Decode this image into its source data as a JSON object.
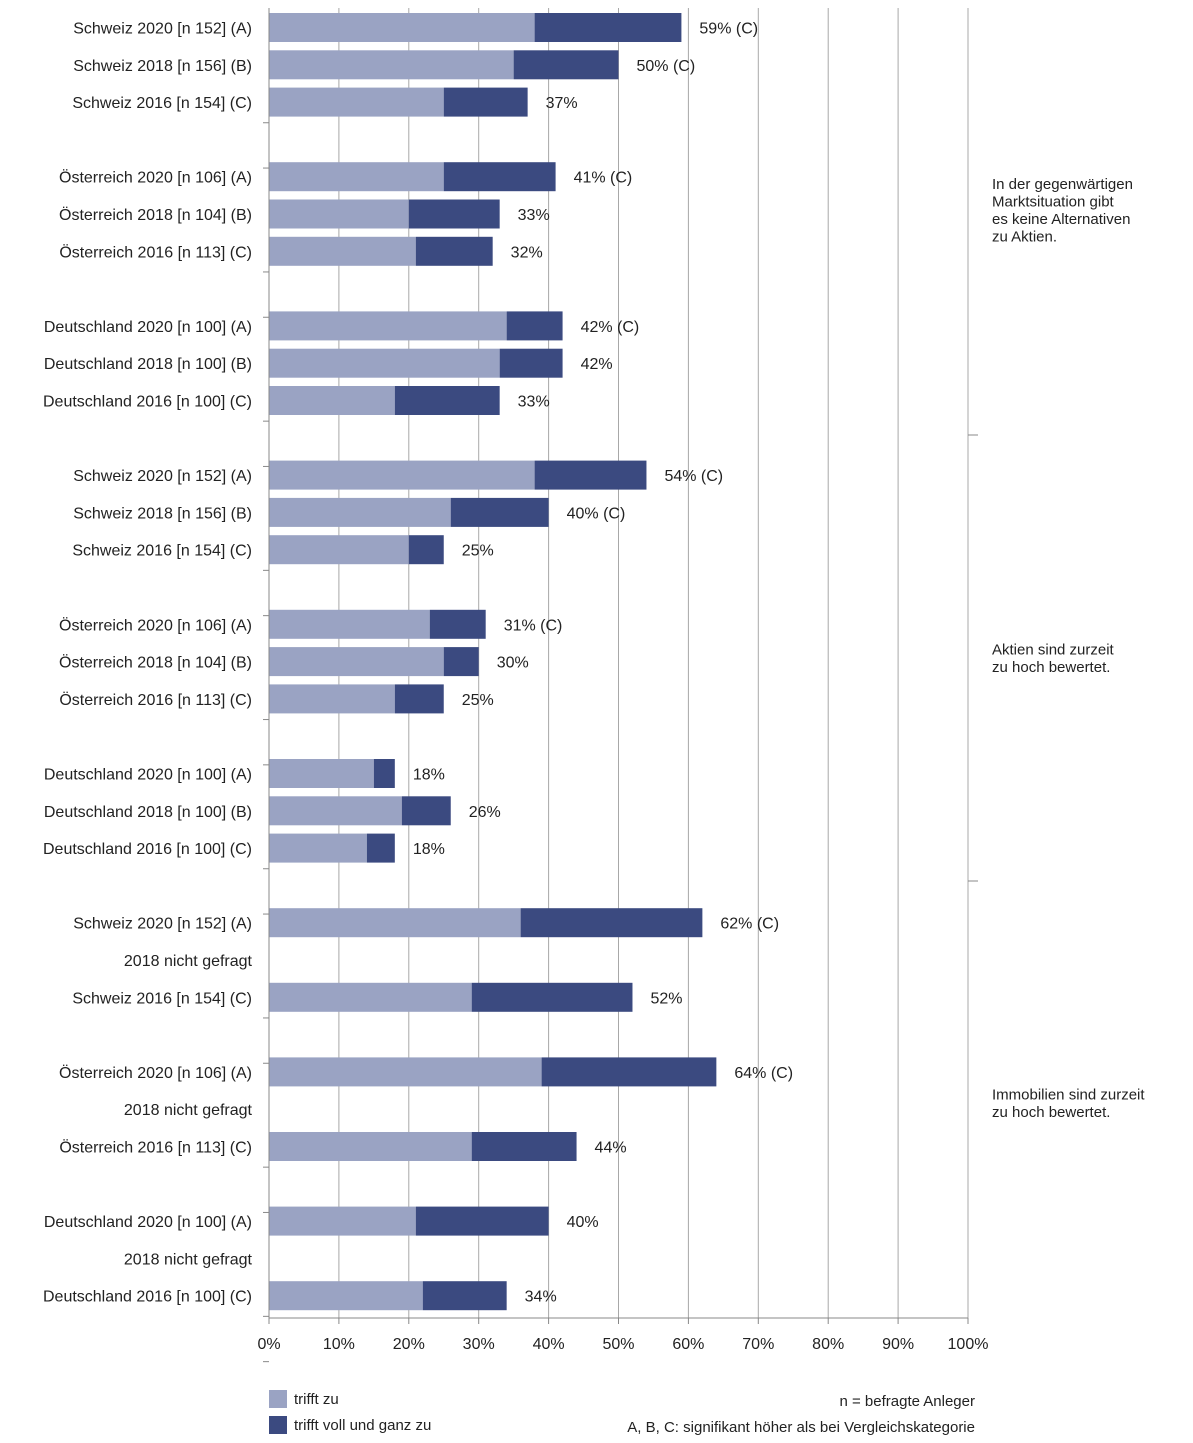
{
  "chart_data": {
    "type": "bar",
    "orientation": "horizontal",
    "stacked": true,
    "xlim": [
      0,
      100
    ],
    "x_ticks": [
      "0%",
      "10%",
      "20%",
      "30%",
      "40%",
      "50%",
      "60%",
      "70%",
      "80%",
      "90%",
      "100%"
    ],
    "grid": true,
    "legend_position": "bottom-left",
    "colors": {
      "trifft_zu": "#9aa3c3",
      "trifft_voll": "#3b4a80",
      "grid": "#a8a8a8",
      "axis": "#888888"
    },
    "series": [
      {
        "name": "trifft zu",
        "color": "#9aa3c3"
      },
      {
        "name": "trifft voll und ganz zu",
        "color": "#3b4a80"
      }
    ],
    "groups": [
      {
        "statement": [
          "In der gegenwärtigen",
          "Marktsituation gibt",
          "es keine Alternativen",
          "zu Aktien."
        ],
        "countries": [
          {
            "rows": [
              {
                "label": "Schweiz 2020 [n 152] (A)",
                "trifft_zu": 38,
                "trifft_voll": 21,
                "total_label": "59% (C)"
              },
              {
                "label": "Schweiz 2018 [n 156] (B)",
                "trifft_zu": 35,
                "trifft_voll": 15,
                "total_label": "50% (C)"
              },
              {
                "label": "Schweiz 2016 [n 154] (C)",
                "trifft_zu": 25,
                "trifft_voll": 12,
                "total_label": "37%"
              }
            ]
          },
          {
            "rows": [
              {
                "label": "Österreich 2020 [n 106] (A)",
                "trifft_zu": 25,
                "trifft_voll": 16,
                "total_label": "41% (C)"
              },
              {
                "label": "Österreich 2018 [n 104] (B)",
                "trifft_zu": 20,
                "trifft_voll": 13,
                "total_label": "33%"
              },
              {
                "label": "Österreich 2016 [n 113] (C)",
                "trifft_zu": 21,
                "trifft_voll": 11,
                "total_label": "32%"
              }
            ]
          },
          {
            "rows": [
              {
                "label": "Deutschland 2020 [n 100] (A)",
                "trifft_zu": 34,
                "trifft_voll": 8,
                "total_label": "42% (C)"
              },
              {
                "label": "Deutschland 2018 [n 100] (B)",
                "trifft_zu": 33,
                "trifft_voll": 9,
                "total_label": "42%"
              },
              {
                "label": "Deutschland 2016 [n 100] (C)",
                "trifft_zu": 18,
                "trifft_voll": 15,
                "total_label": "33%"
              }
            ]
          }
        ]
      },
      {
        "statement": [
          "Aktien sind zurzeit",
          "zu hoch bewertet."
        ],
        "countries": [
          {
            "rows": [
              {
                "label": "Schweiz 2020 [n 152] (A)",
                "trifft_zu": 38,
                "trifft_voll": 16,
                "total_label": "54% (C)"
              },
              {
                "label": "Schweiz 2018 [n 156] (B)",
                "trifft_zu": 26,
                "trifft_voll": 14,
                "total_label": "40% (C)"
              },
              {
                "label": "Schweiz 2016 [n 154] (C)",
                "trifft_zu": 20,
                "trifft_voll": 5,
                "total_label": "25%"
              }
            ]
          },
          {
            "rows": [
              {
                "label": "Österreich 2020 [n 106] (A)",
                "trifft_zu": 23,
                "trifft_voll": 8,
                "total_label": "31% (C)"
              },
              {
                "label": "Österreich 2018 [n 104] (B)",
                "trifft_zu": 25,
                "trifft_voll": 5,
                "total_label": "30%"
              },
              {
                "label": "Österreich 2016 [n 113] (C)",
                "trifft_zu": 18,
                "trifft_voll": 7,
                "total_label": "25%"
              }
            ]
          },
          {
            "rows": [
              {
                "label": "Deutschland 2020 [n 100] (A)",
                "trifft_zu": 15,
                "trifft_voll": 3,
                "total_label": "18%"
              },
              {
                "label": "Deutschland 2018 [n 100] (B)",
                "trifft_zu": 19,
                "trifft_voll": 7,
                "total_label": "26%"
              },
              {
                "label": "Deutschland 2016 [n 100] (C)",
                "trifft_zu": 14,
                "trifft_voll": 4,
                "total_label": "18%"
              }
            ]
          }
        ]
      },
      {
        "statement": [
          "Immobilien sind zurzeit",
          "zu hoch bewertet."
        ],
        "countries": [
          {
            "rows": [
              {
                "label": "Schweiz 2020 [n 152] (A)",
                "trifft_zu": 36,
                "trifft_voll": 26,
                "total_label": "62% (C)"
              },
              {
                "label": "2018 nicht gefragt",
                "trifft_zu": null,
                "trifft_voll": null,
                "total_label": ""
              },
              {
                "label": "Schweiz 2016 [n 154] (C)",
                "trifft_zu": 29,
                "trifft_voll": 23,
                "total_label": "52%"
              }
            ]
          },
          {
            "rows": [
              {
                "label": "Österreich 2020 [n 106] (A)",
                "trifft_zu": 39,
                "trifft_voll": 25,
                "total_label": "64% (C)"
              },
              {
                "label": "2018 nicht gefragt",
                "trifft_zu": null,
                "trifft_voll": null,
                "total_label": ""
              },
              {
                "label": "Österreich 2016 [n 113] (C)",
                "trifft_zu": 29,
                "trifft_voll": 15,
                "total_label": "44%"
              }
            ]
          },
          {
            "rows": [
              {
                "label": "Deutschland 2020 [n 100] (A)",
                "trifft_zu": 21,
                "trifft_voll": 19,
                "total_label": "40%"
              },
              {
                "label": "2018 nicht gefragt",
                "trifft_zu": null,
                "trifft_voll": null,
                "total_label": ""
              },
              {
                "label": "Deutschland 2016 [n 100] (C)",
                "trifft_zu": 22,
                "trifft_voll": 12,
                "total_label": "34%"
              }
            ]
          }
        ]
      }
    ],
    "footnotes": [
      "n = befragte Anleger",
      "A, B, C: signifikant höher als bei Vergleichskategorie"
    ]
  }
}
